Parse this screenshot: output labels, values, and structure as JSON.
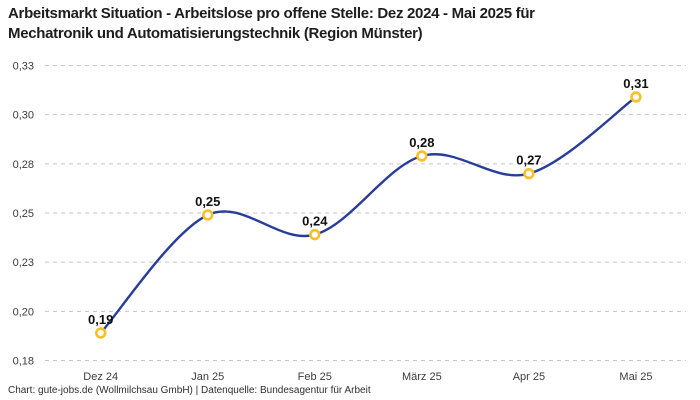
{
  "title": {
    "line1": "Arbeitsmarkt Situation - Arbeitslose pro offene Stelle: Dez 2024 - Mai 2025 für",
    "line2": "Mechatronik und Automatisierungstechnik (Region Münster)"
  },
  "footer": "Chart: gute-jobs.de (Wollmilchsau GmbH) | Datenquelle: Bundesagentur für Arbeit",
  "colors": {
    "line": "#283d9b",
    "marker_ring": "#f9bf29",
    "marker_fill": "#ffffff",
    "grid": "#c6c6c6",
    "title_text": "#1d1d1f",
    "tick_text": "#3c3c3c",
    "point_label_text": "#111111",
    "background": "#ffffff"
  },
  "chart_data": {
    "type": "line",
    "title": "Arbeitsmarkt Situation - Arbeitslose pro offene Stelle: Dez 2024 - Mai 2025 für Mechatronik und Automatisierungstechnik (Region Münster)",
    "categories": [
      "Dez 24",
      "Jan 25",
      "Feb 25",
      "März 25",
      "Apr 25",
      "Mai 25"
    ],
    "values": [
      0.19,
      0.25,
      0.24,
      0.28,
      0.27,
      0.31
    ],
    "values_precise": [
      0.194,
      0.254,
      0.244,
      0.284,
      0.275,
      0.314
    ],
    "point_labels": [
      "0,19",
      "0,25",
      "0,24",
      "0,28",
      "0,27",
      "0,31"
    ],
    "y_tick_labels": [
      "0,33",
      "0,30",
      "0,28",
      "0,25",
      "0,23",
      "0,20",
      "0,18"
    ],
    "ylim": [
      0.18,
      0.33
    ],
    "xlabel": "",
    "ylabel": "",
    "grid": "horizontal-dashed",
    "legend": "none",
    "curve": "smooth-spline"
  }
}
